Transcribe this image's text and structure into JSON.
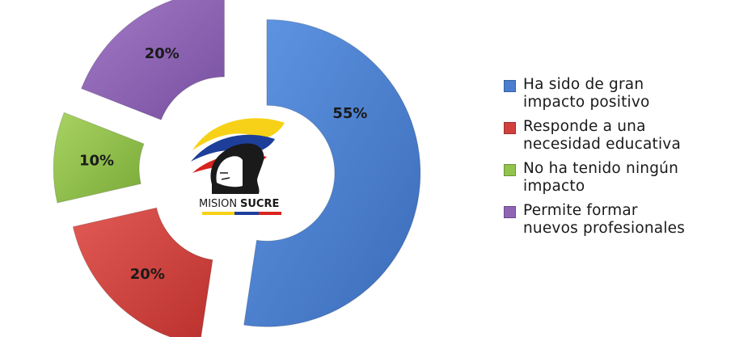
{
  "chart_data": {
    "type": "pie",
    "style": "exploded-donut",
    "categories": [
      "Ha sido de gran impacto positivo",
      "Responde a una necesidad educativa",
      "No ha tenido ningún impacto",
      "Permite formar nuevos profesionales"
    ],
    "values": [
      55,
      20,
      10,
      20
    ],
    "value_labels": [
      "55%",
      "20%",
      "10%",
      "20%"
    ],
    "colors": [
      "#4a7fd0",
      "#d2403d",
      "#92c44c",
      "#8f64b5"
    ],
    "legend_position": "right",
    "legend_lines": [
      [
        "Ha sido de gran",
        "impacto positivo"
      ],
      [
        "Responde a una",
        "necesidad educativa"
      ],
      [
        "No ha tenido ningún",
        "impacto"
      ],
      [
        "Permite formar",
        "nuevos profesionales"
      ]
    ]
  },
  "logo": {
    "text_part1": "MISION",
    "text_part2": "SUCRE",
    "flag_colors": [
      "#f7d117",
      "#1d3f9a",
      "#d9231e"
    ]
  }
}
